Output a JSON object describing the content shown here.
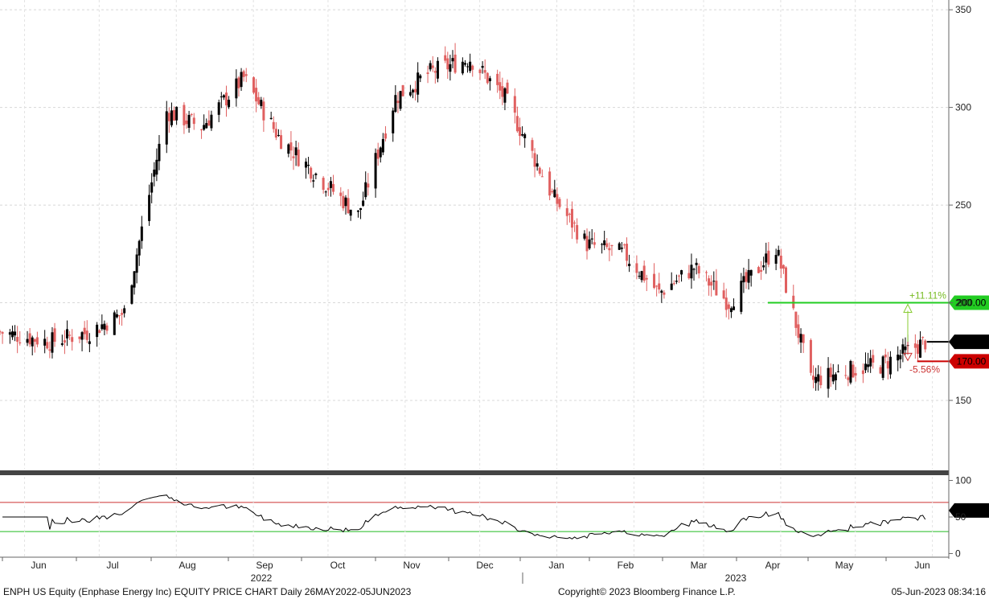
{
  "footer": {
    "left": "ENPH US Equity (Enphase Energy Inc) EQUITY PRICE CHART  Daily 26MAY2022-05JUN2023",
    "center": "Copyright© 2023 Bloomberg Finance L.P.",
    "right": "05-Jun-2023 08:34:16"
  },
  "x_axis": {
    "months": [
      "Jun",
      "Jul",
      "Aug",
      "Sep",
      "Oct",
      "Nov",
      "Dec",
      "Jan",
      "Feb",
      "Mar",
      "Apr",
      "May",
      "Jun"
    ],
    "years": [
      "2022",
      "2023"
    ]
  },
  "colors": {
    "up": "#000000",
    "down": "#e06060",
    "green": "#22cc22",
    "red": "#cc0000"
  },
  "chart_data": [
    {
      "type": "candlestick",
      "ylim": [
        115,
        355
      ],
      "yticks": [
        150,
        200,
        250,
        300,
        350
      ],
      "grid": true,
      "levels": [
        {
          "label": "200.00",
          "value": 200,
          "pct_label": "+11.11%"
        },
        {
          "label": "180.00",
          "value": 180
        },
        {
          "label": "170.00",
          "value": 170,
          "pct_label": "-5.56%"
        }
      ],
      "x_dates": [
        "2022-05-26",
        "2022-06-15",
        "2022-07-01",
        "2022-07-15",
        "2022-08-01",
        "2022-08-15",
        "2022-09-01",
        "2022-09-15",
        "2022-10-03",
        "2022-10-17",
        "2022-11-01",
        "2022-11-15",
        "2022-12-01",
        "2022-12-15",
        "2023-01-03",
        "2023-01-17",
        "2023-02-01",
        "2023-02-15",
        "2023-03-01",
        "2023-03-15",
        "2023-04-03",
        "2023-04-17",
        "2023-05-01",
        "2023-05-15",
        "2023-06-02"
      ],
      "close_approx": [
        185,
        180,
        185,
        195,
        298,
        290,
        315,
        285,
        262,
        245,
        305,
        318,
        325,
        305,
        255,
        230,
        225,
        205,
        218,
        200,
        228,
        160,
        165,
        168,
        180
      ]
    },
    {
      "type": "line",
      "series": [
        {
          "name": "RSI",
          "last": "58.895"
        }
      ],
      "ylim": [
        -5,
        105
      ],
      "yticks": [
        0,
        50,
        100
      ],
      "overbought": 70,
      "oversold": 30
    }
  ]
}
